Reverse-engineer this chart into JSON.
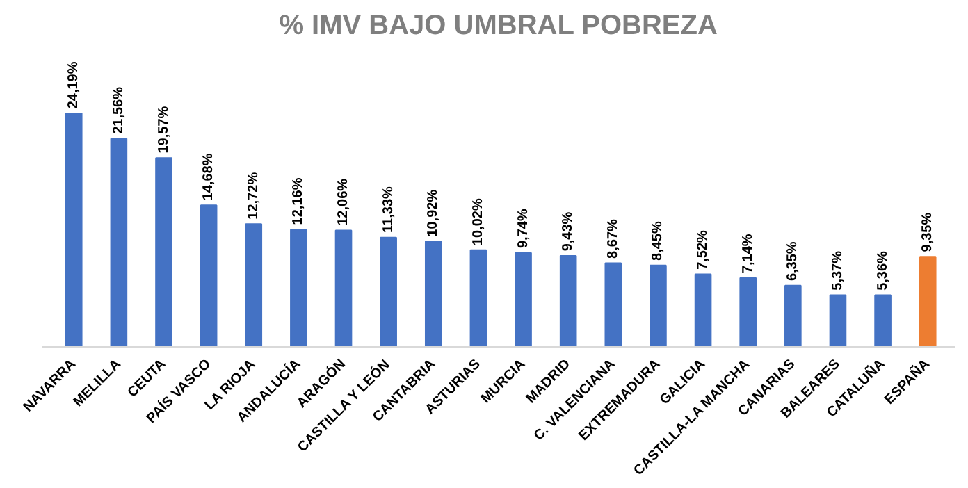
{
  "chart_data": {
    "type": "bar",
    "title": "% IMV BAJO UMBRAL POBREZA",
    "categories": [
      "NAVARRA",
      "MELILLA",
      "CEUTA",
      "PAÍS VASCO",
      "LA RIOJA",
      "ANDALUCÍA",
      "ARAGÓN",
      "CASTILLA Y LEÓN",
      "CANTABRIA",
      "ASTURIAS",
      "MURCIA",
      "MADRID",
      "C. VALENCIANA",
      "EXTREMADURA",
      "GALICIA",
      "CASTILLA-LA MANCHA",
      "CANARIAS",
      "BALEARES",
      "CATALUÑA",
      "ESPAÑA"
    ],
    "values": [
      24.19,
      21.56,
      19.57,
      14.68,
      12.72,
      12.16,
      12.06,
      11.33,
      10.92,
      10.02,
      9.74,
      9.43,
      8.67,
      8.45,
      7.52,
      7.14,
      6.35,
      5.37,
      5.36,
      9.35
    ],
    "value_labels": [
      "24,19%",
      "21,56%",
      "19,57%",
      "14,68%",
      "12,72%",
      "12,16%",
      "12,06%",
      "11,33%",
      "10,92%",
      "10,02%",
      "9,74%",
      "9,43%",
      "8,67%",
      "8,45%",
      "7,52%",
      "7,14%",
      "6,35%",
      "5,37%",
      "5,36%",
      "9,35%"
    ],
    "colors": [
      "#4472c4",
      "#4472c4",
      "#4472c4",
      "#4472c4",
      "#4472c4",
      "#4472c4",
      "#4472c4",
      "#4472c4",
      "#4472c4",
      "#4472c4",
      "#4472c4",
      "#4472c4",
      "#4472c4",
      "#4472c4",
      "#4472c4",
      "#4472c4",
      "#4472c4",
      "#4472c4",
      "#4472c4",
      "#ed7d31"
    ],
    "grid": false
  }
}
